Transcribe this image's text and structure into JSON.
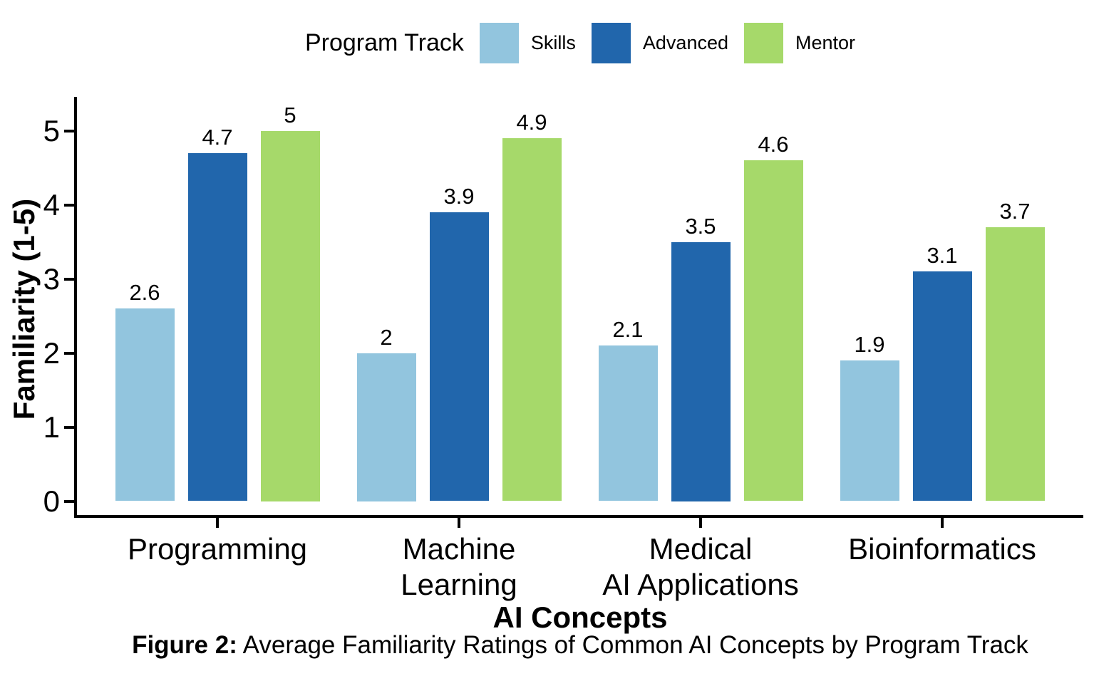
{
  "legend": {
    "title": "Program Track"
  },
  "chart_data": {
    "type": "bar",
    "title": "",
    "xlabel": "AI Concepts",
    "ylabel": "Familiarity (1-5)",
    "categories": [
      "Programming",
      "Machine\nLearning",
      "Medical\nAI Applications",
      "Bioinformatics"
    ],
    "series": [
      {
        "name": "Skills",
        "color": "#92C5DE",
        "values": [
          2.6,
          2,
          2.1,
          1.9
        ]
      },
      {
        "name": "Advanced",
        "color": "#2166AC",
        "values": [
          4.7,
          3.9,
          3.5,
          3.1
        ]
      },
      {
        "name": "Mentor",
        "color": "#A6D96A",
        "values": [
          5,
          4.9,
          4.6,
          3.7
        ]
      }
    ],
    "ylim": [
      0,
      5
    ],
    "yticks": [
      0,
      1,
      2,
      3,
      4,
      5
    ],
    "grid": false,
    "legend_position": "top",
    "value_labels": true,
    "axis_color": "#000000",
    "text_color": "#000000"
  },
  "caption": {
    "prefix": "Figure 2:",
    "text": " Average Familiarity Ratings of Common AI Concepts by Program Track"
  }
}
